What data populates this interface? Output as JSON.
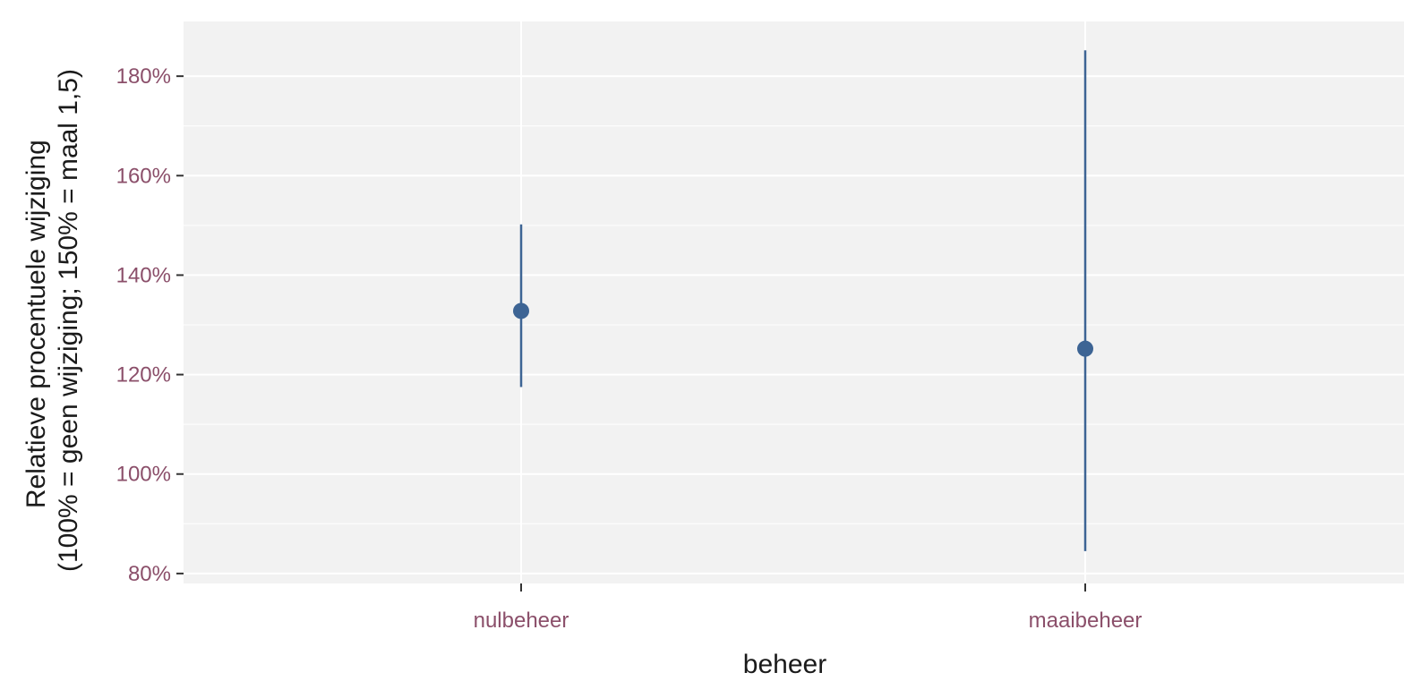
{
  "chart_data": {
    "type": "scatter",
    "title": "",
    "xlabel": "beheer",
    "ylabel_lines": [
      "Relatieve procentuele wijziging",
      "(100% = geen wijziging; 150% = maal 1,5)"
    ],
    "categories": [
      "nulbeheer",
      "maaibeheer"
    ],
    "estimate": [
      132.8,
      125.2
    ],
    "lower": [
      117.5,
      84.5
    ],
    "upper": [
      150.2,
      185.2
    ],
    "ylim": [
      78,
      191
    ],
    "yticks": [
      80,
      100,
      120,
      140,
      160,
      180
    ],
    "ytick_labels": [
      "80%",
      "100%",
      "120%",
      "140%",
      "160%",
      "180%"
    ],
    "grid": true,
    "legend": "none",
    "colors": {
      "panel": "#f2f2f2",
      "grid": "#ffffff",
      "marker": "#3d6494",
      "tick_label": "#8b4f6a",
      "axis_title": "#1a1a1a"
    }
  }
}
